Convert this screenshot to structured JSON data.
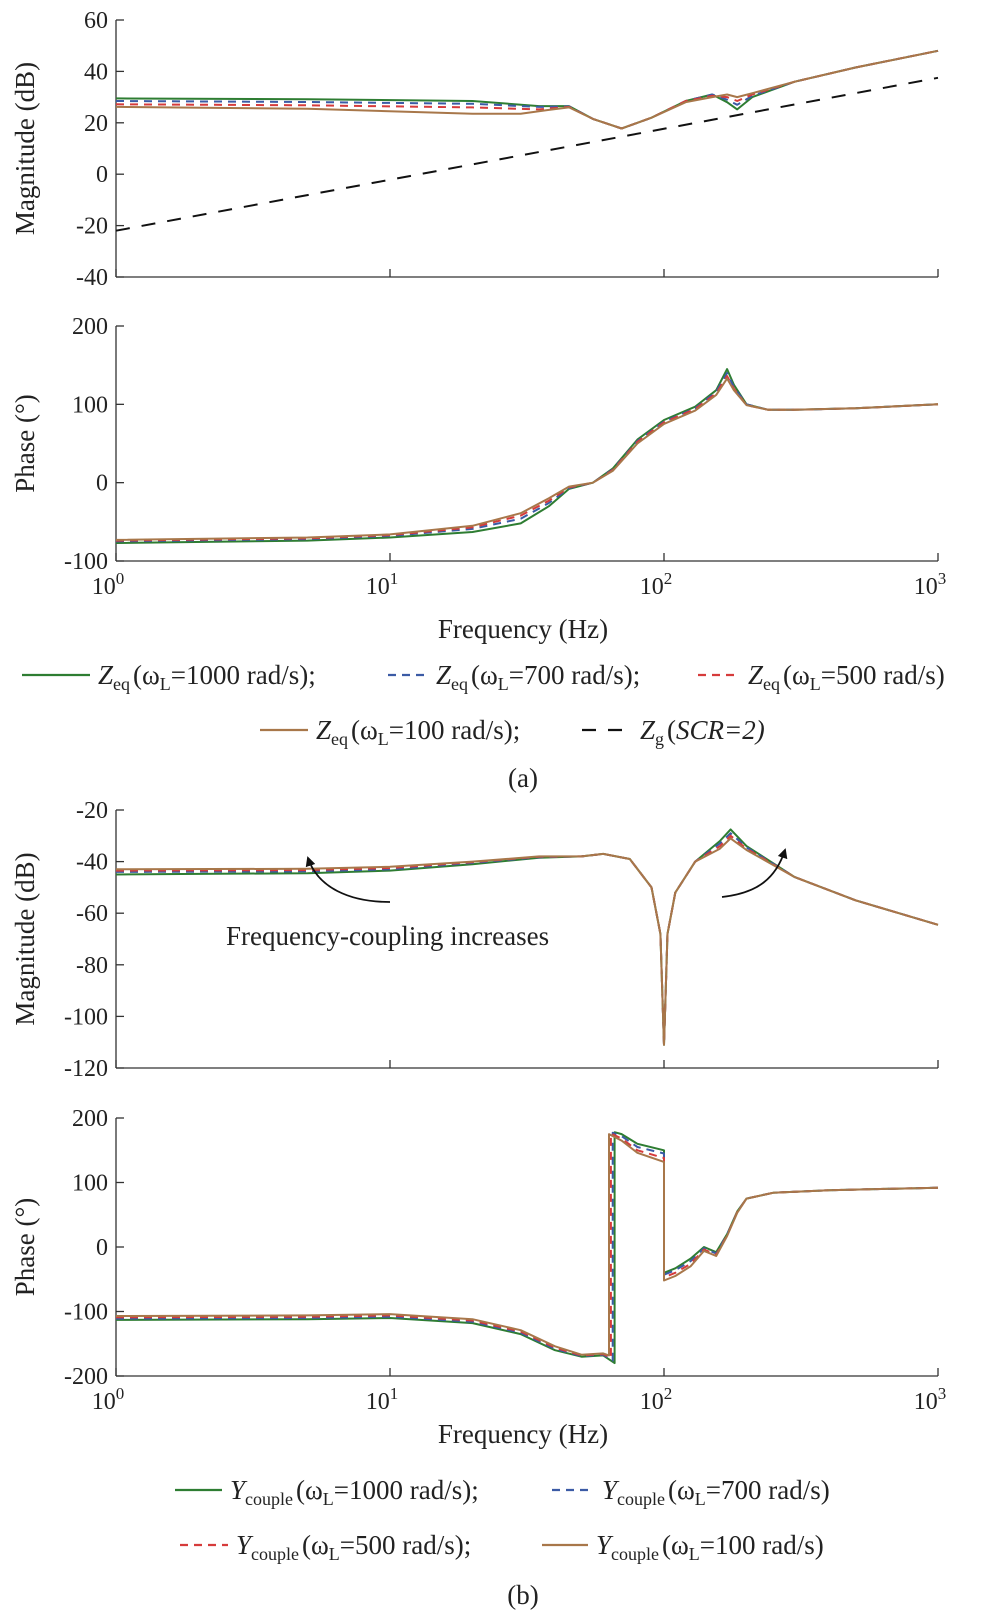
{
  "colors": {
    "w1000": "#2e7d32",
    "w700": "#3b5ba5",
    "w500": "#d63b3b",
    "w100": "#a8774a",
    "grid_impedance": "#111111",
    "axis": "#333333"
  },
  "panels": [
    {
      "id": "a",
      "label": "(a)",
      "xlabel": "Frequency (Hz)",
      "x_ticks": [
        "10^0",
        "10^1",
        "10^2",
        "10^3"
      ],
      "legend": [
        {
          "symbol": "Z",
          "sub": "eq",
          "paren": "(ω",
          "psub": "L",
          "rest": "=1000 rad/s);"
        },
        {
          "symbol": "Z",
          "sub": "eq",
          "paren": "(ω",
          "psub": "L",
          "rest": "=700 rad/s);"
        },
        {
          "symbol": "Z",
          "sub": "eq",
          "paren": "(ω",
          "psub": "L",
          "rest": "=500 rad/s)"
        },
        {
          "symbol": "Z",
          "sub": "eq",
          "paren": "(ω",
          "psub": "L",
          "rest": "=100 rad/s);"
        },
        {
          "symbol": "Z",
          "sub": "g",
          "paren": "(",
          "psub": "",
          "rest": "SCR=2)"
        }
      ]
    },
    {
      "id": "b",
      "label": "(b)",
      "xlabel": "Frequency (Hz)",
      "x_ticks": [
        "10^0",
        "10^1",
        "10^2",
        "10^3"
      ],
      "annotation": "Frequency-coupling increases",
      "legend": [
        {
          "symbol": "Y",
          "sub": "couple",
          "paren": "(ω",
          "psub": "L",
          "rest": "=1000 rad/s);"
        },
        {
          "symbol": "Y",
          "sub": "couple",
          "paren": "(ω",
          "psub": "L",
          "rest": "=700 rad/s)"
        },
        {
          "symbol": "Y",
          "sub": "couple",
          "paren": "(ω",
          "psub": "L",
          "rest": "=500 rad/s);"
        },
        {
          "symbol": "Y",
          "sub": "couple",
          "paren": "(ω",
          "psub": "L",
          "rest": "=100 rad/s)"
        }
      ]
    }
  ],
  "chart_data": [
    {
      "type": "line",
      "panel": "a",
      "xscale": "log",
      "xlim": [
        1,
        1000
      ],
      "ylabel": "Magnitude (dB)",
      "ylim": [
        -40,
        60
      ],
      "yticks": [
        60,
        40,
        20,
        0,
        -20,
        -40
      ],
      "series": [
        {
          "name": "Zeq (ωL=1000 rad/s)",
          "color_key": "w1000",
          "dash": "solid",
          "x": [
            1,
            5,
            20,
            35,
            45,
            55,
            70,
            90,
            120,
            150,
            170,
            185,
            210,
            300,
            500,
            1000
          ],
          "y": [
            29.5,
            29.2,
            28.5,
            26.5,
            26.5,
            21.5,
            17.8,
            22,
            28.5,
            31,
            28,
            25.2,
            30,
            36,
            41.5,
            48
          ]
        },
        {
          "name": "Zeq (ωL=700 rad/s)",
          "color_key": "w700",
          "dash": "dashed",
          "x": [
            1,
            5,
            20,
            35,
            45,
            55,
            70,
            90,
            120,
            150,
            170,
            185,
            210,
            300,
            500,
            1000
          ],
          "y": [
            28.5,
            28.1,
            27.4,
            26.2,
            26.4,
            21.5,
            17.8,
            22,
            28.5,
            31,
            29,
            27,
            30.5,
            36,
            41.5,
            48
          ]
        },
        {
          "name": "Zeq (ωL=500 rad/s)",
          "color_key": "w500",
          "dash": "dashed",
          "x": [
            1,
            5,
            20,
            35,
            45,
            55,
            70,
            90,
            120,
            150,
            170,
            185,
            210,
            300,
            500,
            1000
          ],
          "y": [
            27.2,
            26.8,
            26.0,
            25.2,
            26.2,
            21.5,
            17.8,
            22,
            28.5,
            30.5,
            30,
            28.5,
            31,
            36,
            41.5,
            48
          ]
        },
        {
          "name": "Zeq (ωL=100 rad/s)",
          "color_key": "w100",
          "dash": "solid",
          "x": [
            1,
            5,
            20,
            30,
            38,
            45,
            55,
            70,
            90,
            120,
            150,
            170,
            185,
            210,
            300,
            500,
            1000
          ],
          "y": [
            26.2,
            25.5,
            23.5,
            23.5,
            25,
            26,
            21.5,
            17.8,
            22,
            28,
            30,
            31,
            30,
            31.5,
            36,
            41.5,
            48
          ]
        },
        {
          "name": "Zg (SCR=2)",
          "color_key": "grid_impedance",
          "dash": "longdash",
          "x": [
            1,
            1000
          ],
          "y": [
            -22,
            37.5
          ]
        }
      ]
    },
    {
      "type": "line",
      "panel": "a",
      "xscale": "log",
      "xlim": [
        1,
        1000
      ],
      "ylabel": "Phase (°)",
      "ylim": [
        -100,
        200
      ],
      "yticks": [
        200,
        100,
        0,
        -100
      ],
      "series": [
        {
          "name": "Zeq (ωL=1000 rad/s)",
          "color_key": "w1000",
          "dash": "solid",
          "x": [
            1,
            5,
            10,
            20,
            30,
            38,
            45,
            55,
            65,
            80,
            100,
            130,
            155,
            170,
            180,
            200,
            240,
            300,
            500,
            1000
          ],
          "y": [
            -77,
            -74,
            -70,
            -63,
            -52,
            -30,
            -8,
            0,
            18,
            55,
            80,
            97,
            118,
            145,
            125,
            100,
            93,
            93,
            95,
            100
          ]
        },
        {
          "name": "Zeq (ωL=700 rad/s)",
          "color_key": "w700",
          "dash": "dashed",
          "x": [
            1,
            5,
            10,
            20,
            30,
            38,
            45,
            55,
            65,
            80,
            100,
            130,
            155,
            170,
            180,
            200,
            240,
            300,
            500,
            1000
          ],
          "y": [
            -75,
            -72,
            -68,
            -59,
            -46,
            -26,
            -7,
            0,
            17,
            53,
            78,
            95,
            116,
            140,
            122,
            100,
            93,
            93,
            95,
            100
          ]
        },
        {
          "name": "Zeq (ωL=500 rad/s)",
          "color_key": "w500",
          "dash": "dashed",
          "x": [
            1,
            5,
            10,
            20,
            30,
            38,
            45,
            55,
            65,
            80,
            100,
            130,
            155,
            170,
            180,
            200,
            240,
            300,
            500,
            1000
          ],
          "y": [
            -74,
            -71,
            -67,
            -57,
            -42,
            -23,
            -6,
            0,
            16,
            52,
            77,
            94,
            114,
            136,
            120,
            99,
            93,
            93,
            95,
            100
          ]
        },
        {
          "name": "Zeq (ωL=100 rad/s)",
          "color_key": "w100",
          "dash": "solid",
          "x": [
            1,
            5,
            10,
            20,
            30,
            38,
            45,
            55,
            65,
            80,
            100,
            130,
            155,
            170,
            180,
            200,
            240,
            300,
            500,
            1000
          ],
          "y": [
            -73,
            -70,
            -66,
            -55,
            -39,
            -20,
            -5,
            0,
            15,
            50,
            75,
            92,
            112,
            133,
            118,
            99,
            93,
            93,
            95,
            100
          ]
        }
      ]
    },
    {
      "type": "line",
      "panel": "b",
      "xscale": "log",
      "xlim": [
        1,
        1000
      ],
      "ylabel": "Magnitude (dB)",
      "ylim": [
        -120,
        -20
      ],
      "yticks": [
        -20,
        -40,
        -60,
        -80,
        -100,
        -120
      ],
      "series": [
        {
          "name": "Ycouple (ωL=1000 rad/s)",
          "color_key": "w1000",
          "dash": "solid",
          "x": [
            1,
            5,
            10,
            20,
            35,
            50,
            60,
            75,
            90,
            97,
            100,
            103,
            110,
            130,
            160,
            175,
            200,
            300,
            500,
            1000
          ],
          "y": [
            -45,
            -44.5,
            -43.5,
            -41,
            -38.5,
            -38,
            -37,
            -39,
            -50,
            -68,
            -111,
            -68,
            -52,
            -40,
            -32,
            -27.5,
            -34,
            -46,
            -55,
            -64.5
          ]
        },
        {
          "name": "Ycouple (ωL=700 rad/s)",
          "color_key": "w700",
          "dash": "dashed",
          "x": [
            1,
            5,
            10,
            20,
            35,
            50,
            60,
            75,
            90,
            97,
            100,
            103,
            110,
            130,
            160,
            175,
            200,
            300,
            500,
            1000
          ],
          "y": [
            -44,
            -43.8,
            -43,
            -40.5,
            -38.3,
            -38,
            -37,
            -39,
            -50,
            -68,
            -111,
            -68,
            -52,
            -40,
            -33,
            -29,
            -34.5,
            -46,
            -55,
            -64.5
          ]
        },
        {
          "name": "Ycouple (ωL=500 rad/s)",
          "color_key": "w500",
          "dash": "dashed",
          "x": [
            1,
            5,
            10,
            20,
            35,
            50,
            60,
            75,
            90,
            97,
            100,
            103,
            110,
            130,
            160,
            175,
            200,
            300,
            500,
            1000
          ],
          "y": [
            -43.5,
            -43.3,
            -42.5,
            -40.2,
            -38.1,
            -38,
            -37,
            -39,
            -50,
            -68,
            -111,
            -68,
            -52,
            -40,
            -34,
            -30,
            -35,
            -46,
            -55,
            -64.5
          ]
        },
        {
          "name": "Ycouple (ωL=100 rad/s)",
          "color_key": "w100",
          "dash": "solid",
          "x": [
            1,
            5,
            10,
            20,
            35,
            50,
            60,
            75,
            90,
            97,
            100,
            103,
            110,
            130,
            160,
            175,
            200,
            300,
            500,
            1000
          ],
          "y": [
            -43,
            -42.8,
            -42,
            -40,
            -38,
            -38,
            -37,
            -39,
            -50,
            -68,
            -111,
            -68,
            -52,
            -40,
            -35,
            -31,
            -35.5,
            -46,
            -55,
            -64.5
          ]
        }
      ]
    },
    {
      "type": "line",
      "panel": "b",
      "xscale": "log",
      "xlim": [
        1,
        1000
      ],
      "ylabel": "Phase (°)",
      "ylim": [
        -200,
        200
      ],
      "yticks": [
        200,
        100,
        0,
        -100,
        -200
      ],
      "series": [
        {
          "name": "Ycouple (ωL=1000 rad/s)",
          "color_key": "w1000",
          "dash": "solid",
          "x": [
            1,
            5,
            10,
            20,
            30,
            40,
            50,
            60,
            66,
            66,
            70,
            80,
            100,
            100,
            110,
            125,
            140,
            155,
            170,
            185,
            200,
            250,
            400,
            1000
          ],
          "y": [
            -113,
            -112,
            -110,
            -118,
            -135,
            -160,
            -170,
            -168,
            -180,
            178,
            175,
            160,
            150,
            -40,
            -33,
            -18,
            0,
            -8,
            20,
            55,
            75,
            84,
            88,
            92
          ]
        },
        {
          "name": "Ycouple (ωL=700 rad/s)",
          "color_key": "w700",
          "dash": "dashed",
          "x": [
            1,
            5,
            10,
            20,
            30,
            40,
            50,
            60,
            65,
            65,
            70,
            80,
            100,
            100,
            110,
            125,
            140,
            155,
            170,
            185,
            200,
            250,
            400,
            1000
          ],
          "y": [
            -111,
            -110,
            -108,
            -116,
            -133,
            -158,
            -169,
            -167,
            -176,
            177,
            172,
            155,
            145,
            -43,
            -36,
            -22,
            -2,
            -10,
            19,
            54,
            75,
            84,
            88,
            92
          ]
        },
        {
          "name": "Ycouple (ωL=500 rad/s)",
          "color_key": "w500",
          "dash": "dashed",
          "x": [
            1,
            5,
            10,
            20,
            30,
            40,
            50,
            60,
            64,
            64,
            70,
            80,
            100,
            100,
            110,
            125,
            140,
            155,
            170,
            185,
            200,
            250,
            400,
            1000
          ],
          "y": [
            -109,
            -108,
            -106,
            -114,
            -131,
            -156,
            -168,
            -166,
            -172,
            176,
            168,
            150,
            138,
            -47,
            -40,
            -26,
            -4,
            -12,
            18,
            54,
            75,
            84,
            88,
            92
          ]
        },
        {
          "name": "Ycouple (ωL=100 rad/s)",
          "color_key": "w100",
          "dash": "solid",
          "x": [
            1,
            5,
            10,
            20,
            30,
            40,
            50,
            60,
            63,
            63,
            70,
            80,
            100,
            100,
            110,
            125,
            140,
            155,
            170,
            185,
            200,
            250,
            400,
            1000
          ],
          "y": [
            -107,
            -106,
            -104,
            -112,
            -129,
            -154,
            -167,
            -165,
            -168,
            175,
            165,
            146,
            132,
            -52,
            -45,
            -30,
            -6,
            -14,
            17,
            53,
            75,
            84,
            88,
            92
          ]
        }
      ]
    }
  ]
}
